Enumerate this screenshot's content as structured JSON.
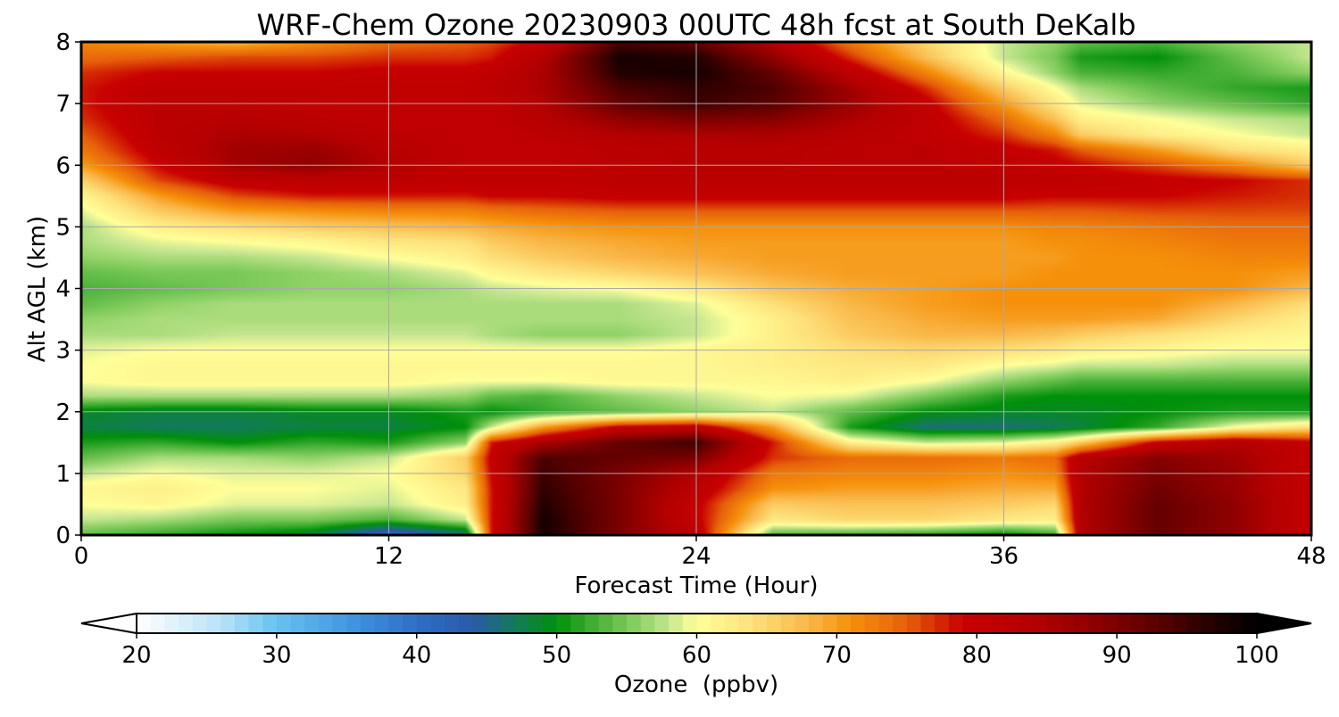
{
  "chart_data": {
    "type": "heatmap",
    "title": "WRF-Chem Ozone  20230903 00UTC 48h fcst at South DeKalb",
    "xlabel": "Forecast Time (Hour)",
    "ylabel": "Alt AGL (km)",
    "xlim": [
      0,
      48
    ],
    "ylim": [
      0,
      8
    ],
    "x_ticks": [
      0,
      12,
      24,
      36,
      48
    ],
    "y_ticks": [
      0,
      1,
      2,
      3,
      4,
      5,
      6,
      7,
      8
    ],
    "grid": true,
    "colorbar": {
      "label": "Ozone  (ppbv)",
      "orientation": "horizontal",
      "position": "bottom",
      "min": 20,
      "max": 100,
      "ticks": [
        20,
        30,
        40,
        50,
        60,
        70,
        80,
        90,
        100
      ],
      "extend": "both",
      "colors": [
        {
          "value": 20,
          "color": "#ffffff"
        },
        {
          "value": 26,
          "color": "#b9e3f7"
        },
        {
          "value": 30,
          "color": "#66c2f0"
        },
        {
          "value": 36,
          "color": "#3d8fdd"
        },
        {
          "value": 40,
          "color": "#2f6fc6"
        },
        {
          "value": 44,
          "color": "#2a5aa8"
        },
        {
          "value": 47,
          "color": "#137a5a"
        },
        {
          "value": 50,
          "color": "#00900a"
        },
        {
          "value": 53,
          "color": "#4cb23a"
        },
        {
          "value": 56,
          "color": "#8fd266"
        },
        {
          "value": 58,
          "color": "#c6e690"
        },
        {
          "value": 60,
          "color": "#ffff99"
        },
        {
          "value": 64,
          "color": "#fde07a"
        },
        {
          "value": 68,
          "color": "#f9b748"
        },
        {
          "value": 71,
          "color": "#f5900a"
        },
        {
          "value": 75,
          "color": "#e6600a"
        },
        {
          "value": 79,
          "color": "#c80000"
        },
        {
          "value": 84,
          "color": "#b40000"
        },
        {
          "value": 88,
          "color": "#900000"
        },
        {
          "value": 93,
          "color": "#5a0000"
        },
        {
          "value": 97,
          "color": "#220000"
        },
        {
          "value": 100,
          "color": "#000000"
        }
      ]
    },
    "x_hours": [
      0,
      3,
      6,
      9,
      12,
      15,
      16,
      18,
      21,
      24,
      27,
      30,
      33,
      36,
      38,
      39,
      42,
      45,
      48
    ],
    "y_km": [
      0,
      0.25,
      0.5,
      0.75,
      1,
      1.25,
      1.5,
      1.75,
      2,
      2.25,
      2.5,
      2.75,
      3,
      3.25,
      3.5,
      3.75,
      4,
      4.25,
      4.5,
      4.75,
      5,
      5.25,
      5.5,
      5.75,
      6,
      6.25,
      6.5,
      6.75,
      7,
      7.25,
      7.5,
      7.75,
      8
    ],
    "ozone_ppbv": [
      [
        54,
        52,
        50,
        48,
        40,
        45,
        78,
        98,
        90,
        82,
        53,
        52,
        51,
        49,
        52,
        84,
        92,
        88,
        80
      ],
      [
        58,
        57,
        55,
        55,
        53,
        58,
        78,
        98,
        90,
        80,
        63,
        65,
        65,
        63,
        62,
        84,
        92,
        88,
        80
      ],
      [
        60,
        61,
        59,
        59,
        58,
        62,
        78,
        97,
        90,
        80,
        66,
        67,
        67,
        66,
        65,
        84,
        92,
        88,
        80
      ],
      [
        61,
        62,
        60,
        60,
        59,
        63,
        78,
        96,
        90,
        82,
        71,
        70,
        70,
        69,
        69,
        84,
        91,
        87,
        80
      ],
      [
        58,
        60,
        59,
        59,
        60,
        65,
        79,
        95,
        90,
        84,
        73,
        72,
        72,
        71,
        72,
        84,
        90,
        87,
        80
      ],
      [
        54,
        57,
        57,
        56,
        58,
        66,
        80,
        94,
        92,
        90,
        77,
        74,
        74,
        73,
        74,
        83,
        89,
        86,
        80
      ],
      [
        51,
        52,
        50,
        52,
        51,
        56,
        78,
        85,
        92,
        95,
        78,
        62,
        58,
        59,
        62,
        66,
        80,
        84,
        80
      ],
      [
        48,
        47,
        47,
        48,
        48,
        50,
        58,
        70,
        80,
        82,
        70,
        51,
        46,
        46,
        47,
        48,
        52,
        60,
        64
      ],
      [
        49,
        48,
        48,
        49,
        49,
        51,
        50,
        52,
        54,
        56,
        58,
        54,
        50,
        49,
        49,
        49,
        50,
        51,
        51
      ],
      [
        57,
        57,
        57,
        57,
        57,
        56,
        54,
        53,
        56,
        58,
        60,
        59,
        55,
        51,
        50,
        50,
        50,
        50,
        50
      ],
      [
        60,
        61,
        61,
        61,
        61,
        60,
        60,
        60,
        61,
        61,
        61,
        62,
        60,
        56,
        54,
        53,
        53,
        53,
        53
      ],
      [
        60,
        61,
        61,
        61,
        61,
        61,
        61,
        61,
        61,
        61,
        62,
        63,
        63,
        60,
        59,
        58,
        58,
        57,
        57
      ],
      [
        59,
        60,
        60,
        60,
        60,
        60,
        60,
        60,
        60,
        61,
        62,
        64,
        65,
        64,
        63,
        62,
        61,
        60,
        60
      ],
      [
        57,
        57,
        58,
        58,
        58,
        58,
        57,
        56,
        56,
        58,
        62,
        66,
        68,
        68,
        67,
        66,
        64,
        62,
        61
      ],
      [
        56,
        57,
        57,
        57,
        57,
        57,
        57,
        57,
        57,
        58,
        62,
        67,
        69,
        70,
        70,
        70,
        69,
        65,
        62
      ],
      [
        54,
        56,
        57,
        57,
        57,
        57,
        57,
        57,
        57,
        59,
        64,
        68,
        70,
        71,
        71,
        71,
        71,
        68,
        64
      ],
      [
        53,
        54,
        55,
        56,
        56,
        57,
        58,
        59,
        60,
        63,
        67,
        69,
        70,
        71,
        71,
        71,
        71,
        71,
        68
      ],
      [
        54,
        55,
        55,
        56,
        57,
        59,
        61,
        63,
        65,
        67,
        69,
        70,
        70,
        70,
        71,
        71,
        71,
        71,
        70
      ],
      [
        56,
        57,
        57,
        58,
        60,
        62,
        64,
        66,
        68,
        69,
        70,
        70,
        70,
        70,
        70,
        71,
        71,
        72,
        72
      ],
      [
        57,
        59,
        60,
        61,
        63,
        64,
        66,
        68,
        69,
        70,
        70,
        70,
        70,
        70,
        71,
        71,
        72,
        73,
        73
      ],
      [
        57,
        62,
        64,
        66,
        67,
        68,
        69,
        70,
        71,
        71,
        71,
        71,
        71,
        71,
        72,
        72,
        73,
        74,
        74
      ],
      [
        59,
        66,
        70,
        71,
        72,
        72,
        73,
        74,
        75,
        75,
        75,
        75,
        75,
        75,
        75,
        75,
        76,
        76,
        76
      ],
      [
        61,
        70,
        76,
        78,
        78,
        78,
        79,
        79,
        80,
        80,
        80,
        80,
        80,
        80,
        79,
        79,
        79,
        78,
        77
      ],
      [
        65,
        76,
        81,
        82,
        82,
        81,
        81,
        81,
        82,
        82,
        82,
        82,
        82,
        82,
        81,
        81,
        80,
        79,
        77
      ],
      [
        70,
        79,
        86,
        88,
        84,
        81,
        81,
        81,
        82,
        83,
        83,
        82,
        82,
        81,
        80,
        79,
        76,
        72,
        66
      ],
      [
        73,
        81,
        86,
        87,
        83,
        81,
        81,
        81,
        82,
        83,
        83,
        82,
        82,
        80,
        78,
        75,
        70,
        64,
        62
      ],
      [
        75,
        82,
        85,
        84,
        82,
        81,
        81,
        82,
        84,
        85,
        85,
        83,
        81,
        77,
        72,
        66,
        62,
        60,
        58
      ],
      [
        77,
        82,
        83,
        82,
        81,
        81,
        81,
        83,
        88,
        90,
        89,
        85,
        81,
        74,
        67,
        62,
        60,
        58,
        57
      ],
      [
        78,
        82,
        82,
        81,
        81,
        81,
        81,
        84,
        92,
        95,
        93,
        87,
        80,
        70,
        63,
        59,
        56,
        54,
        52
      ],
      [
        78,
        81,
        81,
        81,
        81,
        81,
        82,
        85,
        94,
        96,
        94,
        86,
        77,
        66,
        60,
        57,
        54,
        52,
        51
      ],
      [
        77,
        79,
        79,
        79,
        80,
        80,
        81,
        85,
        97,
        98,
        92,
        82,
        72,
        61,
        56,
        53,
        52,
        53,
        56
      ],
      [
        74,
        75,
        76,
        76,
        77,
        77,
        78,
        84,
        98,
        97,
        88,
        77,
        67,
        58,
        55,
        51,
        50,
        54,
        58
      ],
      [
        72,
        70,
        68,
        71,
        74,
        75,
        76,
        80,
        94,
        92,
        84,
        73,
        65,
        58,
        56,
        54,
        53,
        56,
        58
      ]
    ]
  }
}
